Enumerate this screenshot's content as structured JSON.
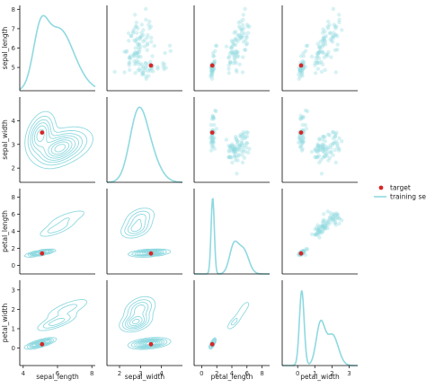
{
  "chart_data": {
    "type": "pairplot",
    "variables": [
      "sepal_length",
      "sepal_width",
      "petal_length",
      "petal_width"
    ],
    "axis_ranges": {
      "sepal_length": [
        3.8,
        8.2
      ],
      "sepal_width": [
        1.4,
        5.0
      ],
      "petal_length": [
        -1.0,
        9.0
      ],
      "petal_width": [
        -0.9,
        3.5
      ]
    },
    "axis_labels": {
      "sepal_length": "sepal_length",
      "sepal_width": "sepal_width",
      "petal_length": "petal_length",
      "petal_width": "petal_width"
    },
    "ticks": {
      "sepal_length": [
        4,
        6,
        8
      ],
      "sepal_width": [
        2,
        3,
        4
      ],
      "petal_length": [
        0,
        2,
        4,
        6,
        8
      ],
      "petal_width": [
        0,
        1,
        2,
        3
      ]
    },
    "y_ticks": {
      "sepal_length": [
        5,
        6,
        7,
        8
      ],
      "sepal_width": [
        2,
        3,
        4
      ],
      "petal_length": [
        0,
        2,
        4,
        6,
        8
      ],
      "petal_width": [
        0,
        1,
        2,
        3
      ]
    },
    "diagonal": "kde",
    "upper": "scatter",
    "lower": "kde_contour",
    "target": {
      "sepal_length": 5.1,
      "sepal_width": 3.5,
      "petal_length": 1.4,
      "petal_width": 0.2
    },
    "training_set_clusters": [
      {
        "sepal_length": 5.0,
        "sepal_width": 3.42,
        "petal_length": 1.46,
        "petal_width": 0.24,
        "sd": {
          "sepal_length": 0.35,
          "sepal_width": 0.38,
          "petal_length": 0.17,
          "petal_width": 0.11
        },
        "weight": 1
      },
      {
        "sepal_length": 5.94,
        "sepal_width": 2.77,
        "petal_length": 4.26,
        "petal_width": 1.33,
        "sd": {
          "sepal_length": 0.52,
          "sepal_width": 0.31,
          "petal_length": 0.47,
          "petal_width": 0.2
        },
        "weight": 1
      },
      {
        "sepal_length": 6.59,
        "sepal_width": 2.97,
        "petal_length": 5.55,
        "petal_width": 2.03,
        "sd": {
          "sepal_length": 0.64,
          "sepal_width": 0.32,
          "petal_length": 0.55,
          "petal_width": 0.27
        },
        "weight": 1
      }
    ],
    "legend": {
      "position": "right",
      "entries": [
        {
          "label": "target",
          "marker": "dot"
        },
        {
          "label": "training set",
          "marker": "line"
        }
      ]
    },
    "colors": {
      "training_set": "#8fd9e0",
      "target": "#d62728"
    }
  }
}
